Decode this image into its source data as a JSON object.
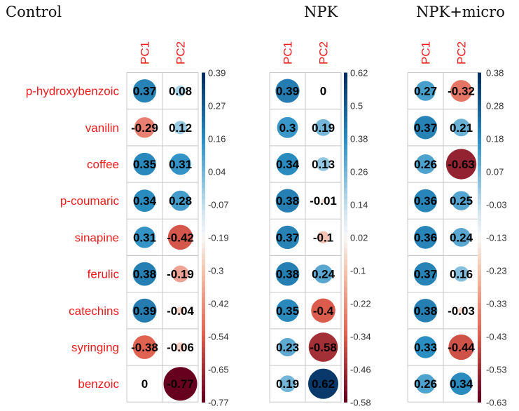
{
  "chart_data": [
    {
      "type": "heatmap",
      "title": "Control",
      "columns": [
        "PC1",
        "PC2"
      ],
      "rows": [
        "p-hydroxybenzoic",
        "vanilin",
        "coffee",
        "p-coumaric",
        "sinapine",
        "ferulic",
        "catechins",
        "syringing",
        "benzoic"
      ],
      "values": [
        [
          0.37,
          0.08
        ],
        [
          -0.29,
          0.12
        ],
        [
          0.35,
          0.31
        ],
        [
          0.34,
          0.28
        ],
        [
          0.31,
          -0.42
        ],
        [
          0.38,
          -0.19
        ],
        [
          0.39,
          -0.04
        ],
        [
          -0.38,
          -0.06
        ],
        [
          0,
          -0.77
        ]
      ],
      "value_labels": [
        [
          "0.37",
          "0.08"
        ],
        [
          "-0.29",
          "0.12"
        ],
        [
          "0.35",
          "0.31"
        ],
        [
          "0.34",
          "0.28"
        ],
        [
          "0.31",
          "-0.42"
        ],
        [
          "0.38",
          "-0.19"
        ],
        [
          "0.39",
          "-0.04"
        ],
        [
          "-0.38",
          "-0.06"
        ],
        [
          "0",
          "-0.77"
        ]
      ],
      "color_scale": {
        "min": -0.77,
        "max": 0.39,
        "tick_labels": [
          "0.39",
          "0.27",
          "0.16",
          "0.04",
          "-0.07",
          "-0.19",
          "-0.3",
          "-0.42",
          "-0.54",
          "-0.65",
          "-0.77"
        ]
      }
    },
    {
      "type": "heatmap",
      "title": "NPK",
      "columns": [
        "PC1",
        "PC2"
      ],
      "rows": [
        "p-hydroxybenzoic",
        "vanilin",
        "coffee",
        "p-coumaric",
        "sinapine",
        "ferulic",
        "catechins",
        "syringing",
        "benzoic"
      ],
      "values": [
        [
          0.39,
          0
        ],
        [
          0.3,
          0.19
        ],
        [
          0.34,
          0.13
        ],
        [
          0.38,
          -0.01
        ],
        [
          0.37,
          -0.1
        ],
        [
          0.38,
          0.24
        ],
        [
          0.35,
          -0.4
        ],
        [
          0.23,
          -0.58
        ],
        [
          0.19,
          0.62
        ]
      ],
      "value_labels": [
        [
          "0.39",
          "0"
        ],
        [
          "0.3",
          "0.19"
        ],
        [
          "0.34",
          "0.13"
        ],
        [
          "0.38",
          "-0.01"
        ],
        [
          "0.37",
          "-0.1"
        ],
        [
          "0.38",
          "0.24"
        ],
        [
          "0.35",
          "-0.4"
        ],
        [
          "0.23",
          "-0.58"
        ],
        [
          "0.19",
          "0.62"
        ]
      ],
      "color_scale": {
        "min": -0.58,
        "max": 0.62,
        "tick_labels": [
          "0.62",
          "0.5",
          "0.38",
          "0.26",
          "0.14",
          "0.02",
          "-0.1",
          "-0.22",
          "-0.34",
          "-0.46",
          "-0.58"
        ]
      }
    },
    {
      "type": "heatmap",
      "title": "NPK+micro",
      "columns": [
        "PC1",
        "PC2"
      ],
      "rows": [
        "p-hydroxybenzoic",
        "vanilin",
        "coffee",
        "p-coumaric",
        "sinapine",
        "ferulic",
        "catechins",
        "syringing",
        "benzoic"
      ],
      "values": [
        [
          0.27,
          -0.32
        ],
        [
          0.37,
          0.21
        ],
        [
          0.26,
          -0.63
        ],
        [
          0.36,
          0.25
        ],
        [
          0.36,
          0.24
        ],
        [
          0.37,
          0.16
        ],
        [
          0.38,
          -0.03
        ],
        [
          0.33,
          -0.44
        ],
        [
          0.26,
          0.34
        ]
      ],
      "value_labels": [
        [
          "0.27",
          "-0.32"
        ],
        [
          "0.37",
          "0.21"
        ],
        [
          "0.26",
          "-0.63"
        ],
        [
          "0.36",
          "0.25"
        ],
        [
          "0.36",
          "0.24"
        ],
        [
          "0.37",
          "0.16"
        ],
        [
          "0.38",
          "-0.03"
        ],
        [
          "0.33",
          "-0.44"
        ],
        [
          "0.26",
          "0.34"
        ]
      ],
      "color_scale": {
        "min": -0.63,
        "max": 0.38,
        "tick_labels": [
          "0.38",
          "0.28",
          "0.18",
          "0.07",
          "-0.03",
          "-0.13",
          "-0.23",
          "-0.33",
          "-0.43",
          "-0.53",
          "-0.63"
        ]
      }
    }
  ],
  "colors": {
    "positive_dark": "#053061",
    "positive_mid": "#2c8fc4",
    "neutral": "#f7f7f7",
    "negative_mid": "#e0604f",
    "negative_dark": "#67001f",
    "label_red": "#ee1c1c"
  }
}
